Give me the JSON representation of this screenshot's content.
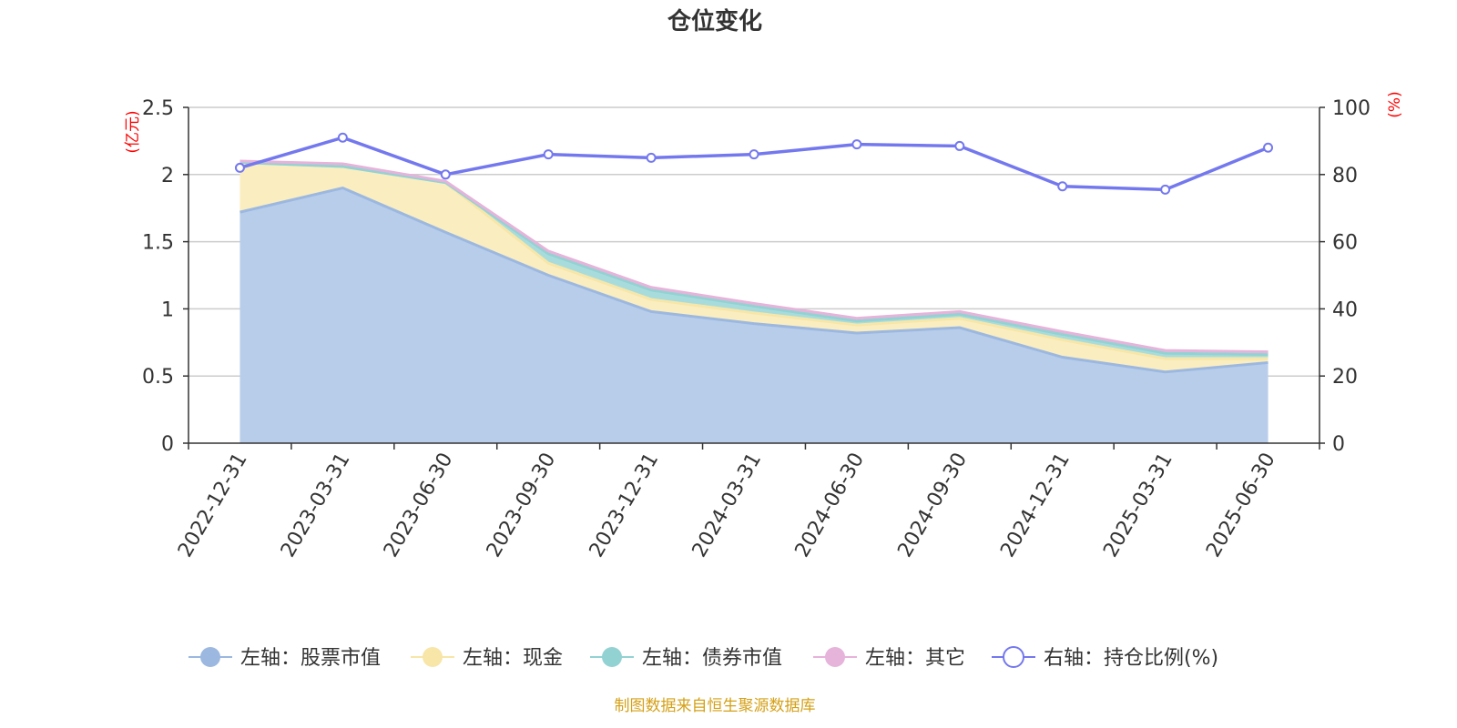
{
  "chart_data": {
    "type": "area",
    "title": "仓位变化",
    "left_unit": "(亿元)",
    "right_unit": "(%)",
    "categories": [
      "2022-12-31",
      "2023-03-31",
      "2023-06-30",
      "2023-09-30",
      "2023-12-31",
      "2024-03-31",
      "2024-06-30",
      "2024-09-30",
      "2024-12-31",
      "2025-03-31",
      "2025-06-30"
    ],
    "left_axis": {
      "min": 0,
      "max": 2.5,
      "ticks": [
        "0",
        "0.5",
        "1",
        "1.5",
        "2",
        "2.5"
      ],
      "tick_values": [
        0,
        0.5,
        1,
        1.5,
        2,
        2.5
      ]
    },
    "right_axis": {
      "min": 0,
      "max": 100,
      "ticks": [
        "0",
        "20",
        "40",
        "60",
        "80",
        "100"
      ],
      "tick_values": [
        0,
        20,
        40,
        60,
        80,
        100
      ]
    },
    "stacked_series": [
      {
        "name": "左轴：股票市值",
        "color": "#9cb8e0",
        "fill": "#b8cdea",
        "values": [
          1.72,
          1.9,
          1.57,
          1.25,
          0.98,
          0.89,
          0.82,
          0.86,
          0.64,
          0.53,
          0.6
        ]
      },
      {
        "name": "左轴：现金",
        "color": "#f7e6a8",
        "fill": "#faedc0",
        "values": [
          0.37,
          0.16,
          0.37,
          0.09,
          0.09,
          0.08,
          0.06,
          0.07,
          0.13,
          0.1,
          0.03
        ]
      },
      {
        "name": "左轴：债券市值",
        "color": "#93d2d3",
        "fill": "#a8dcdc",
        "values": [
          0.0,
          0.0,
          0.0,
          0.07,
          0.07,
          0.05,
          0.03,
          0.03,
          0.04,
          0.04,
          0.03
        ]
      },
      {
        "name": "左轴：其它",
        "color": "#e6b3da",
        "fill": "#ecc3e2",
        "values": [
          0.01,
          0.02,
          0.01,
          0.02,
          0.02,
          0.02,
          0.02,
          0.02,
          0.02,
          0.02,
          0.02
        ]
      }
    ],
    "line_series": {
      "name": "右轴：持仓比例(%)",
      "color": "#7478ee",
      "values": [
        82,
        91,
        80,
        86,
        85,
        86,
        89,
        88.5,
        76.5,
        75.5,
        88
      ]
    },
    "grid": true,
    "legend_position": "bottom"
  },
  "footer": {
    "source": "制图数据来自恒生聚源数据库"
  }
}
